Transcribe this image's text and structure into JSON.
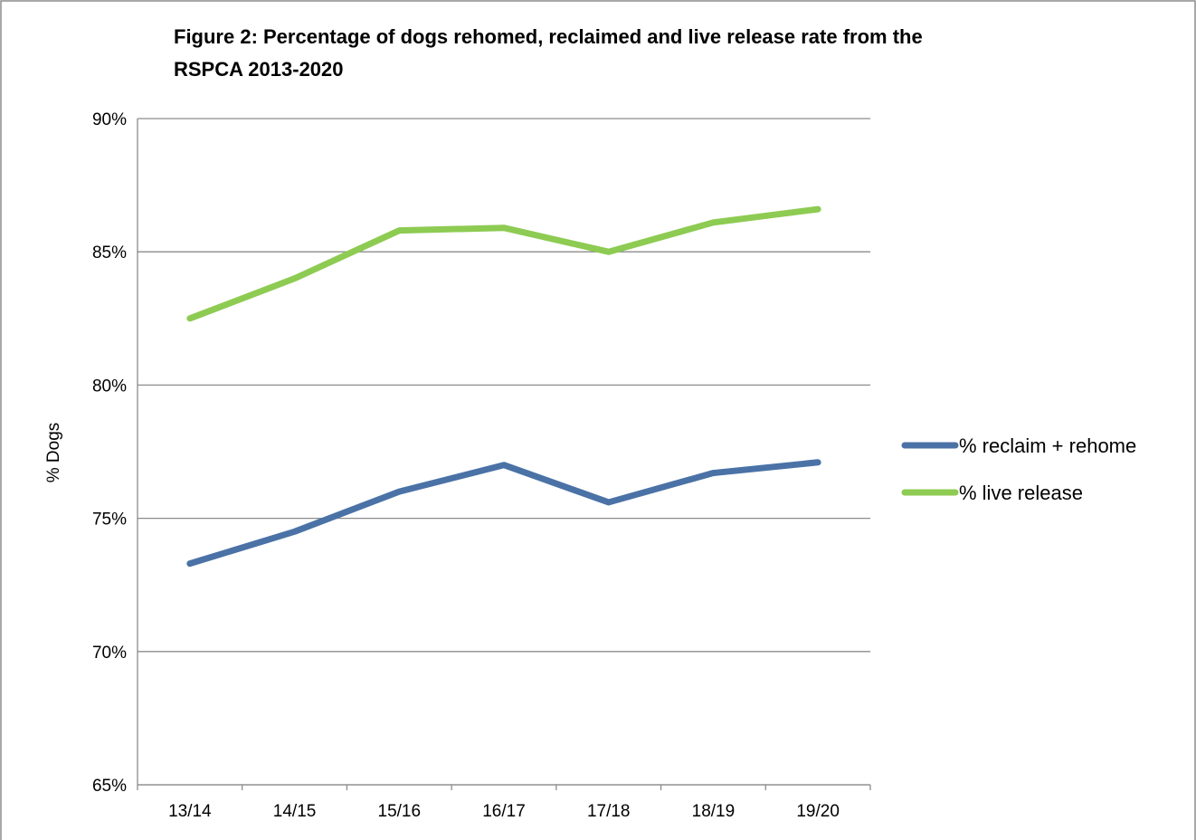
{
  "chart_data": {
    "type": "line",
    "title": "Figure 2: Percentage of dogs rehomed, reclaimed and live release rate from the RSPCA 2013-2020",
    "title_lines": [
      "Figure 2: Percentage of dogs rehomed, reclaimed and live release rate from the",
      "RSPCA 2013-2020"
    ],
    "xlabel": "",
    "ylabel": "% Dogs",
    "categories": [
      "13/14",
      "14/15",
      "15/16",
      "16/17",
      "17/18",
      "18/19",
      "19/20"
    ],
    "ylim": [
      65,
      90
    ],
    "yticks": [
      65,
      70,
      75,
      80,
      85,
      90
    ],
    "ytick_labels": [
      "65%",
      "70%",
      "75%",
      "80%",
      "85%",
      "90%"
    ],
    "grid": true,
    "legend_position": "right",
    "series": [
      {
        "name": "% reclaim + rehome",
        "color": "#4A72A6",
        "values": [
          73.3,
          74.5,
          76.0,
          77.0,
          75.6,
          76.7,
          77.1
        ]
      },
      {
        "name": "% live release",
        "color": "#8DCB52",
        "values": [
          82.5,
          84.0,
          85.8,
          85.9,
          85.0,
          86.1,
          86.6
        ]
      }
    ]
  }
}
